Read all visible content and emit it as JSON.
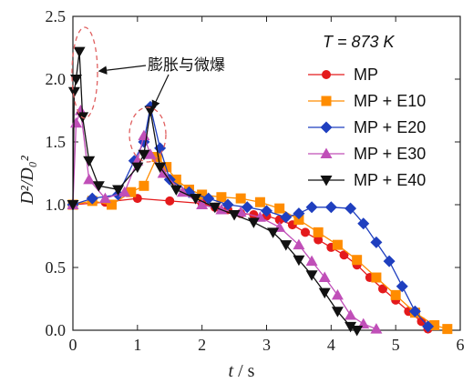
{
  "chart_data": {
    "type": "line",
    "xlabel_italic": "t",
    "xlabel_unit": " / s",
    "ylabel": "D²/D₀²",
    "xlim": [
      0,
      6
    ],
    "ylim": [
      0,
      2.5
    ],
    "xticks": [
      0,
      1,
      2,
      3,
      4,
      5,
      6
    ],
    "yticks": [
      0.0,
      0.5,
      1.0,
      1.5,
      2.0,
      2.5
    ],
    "ytick_labels": [
      "0.0",
      "0.5",
      "1.0",
      "1.5",
      "2.0",
      "2.5"
    ],
    "legend_title": "T = 873 K",
    "legend_placement": "top-right",
    "annotation": "膨胀与微爆",
    "series": [
      {
        "name": "MP",
        "color": "#e41a1c",
        "marker": "circle",
        "points": [
          [
            0,
            1.0
          ],
          [
            0.5,
            1.02
          ],
          [
            1.0,
            1.05
          ],
          [
            1.5,
            1.03
          ],
          [
            2.0,
            1.01
          ],
          [
            2.2,
            0.98
          ],
          [
            2.4,
            0.96
          ],
          [
            2.6,
            0.93
          ],
          [
            2.8,
            0.92
          ],
          [
            3.0,
            0.91
          ],
          [
            3.2,
            0.88
          ],
          [
            3.4,
            0.84
          ],
          [
            3.6,
            0.78
          ],
          [
            3.8,
            0.72
          ],
          [
            4.0,
            0.66
          ],
          [
            4.2,
            0.6
          ],
          [
            4.4,
            0.52
          ],
          [
            4.6,
            0.42
          ],
          [
            4.8,
            0.33
          ],
          [
            5.0,
            0.24
          ],
          [
            5.2,
            0.15
          ],
          [
            5.4,
            0.07
          ],
          [
            5.5,
            0.01
          ]
        ]
      },
      {
        "name": "MP + E10",
        "color": "#ff8c00",
        "marker": "square",
        "points": [
          [
            0,
            1.0
          ],
          [
            0.3,
            1.03
          ],
          [
            0.6,
            1.0
          ],
          [
            0.9,
            1.1
          ],
          [
            1.1,
            1.15
          ],
          [
            1.3,
            1.38
          ],
          [
            1.45,
            1.3
          ],
          [
            1.6,
            1.2
          ],
          [
            1.8,
            1.12
          ],
          [
            2.0,
            1.08
          ],
          [
            2.3,
            1.06
          ],
          [
            2.6,
            1.05
          ],
          [
            2.9,
            1.02
          ],
          [
            3.2,
            0.97
          ],
          [
            3.5,
            0.88
          ],
          [
            3.8,
            0.78
          ],
          [
            4.1,
            0.68
          ],
          [
            4.4,
            0.56
          ],
          [
            4.7,
            0.42
          ],
          [
            5.0,
            0.28
          ],
          [
            5.3,
            0.14
          ],
          [
            5.6,
            0.04
          ],
          [
            5.8,
            0.01
          ]
        ]
      },
      {
        "name": "MP + E20",
        "color": "#1f3fbf",
        "marker": "diamond",
        "points": [
          [
            0,
            1.0
          ],
          [
            0.3,
            1.05
          ],
          [
            0.7,
            1.08
          ],
          [
            0.95,
            1.35
          ],
          [
            1.1,
            1.5
          ],
          [
            1.2,
            1.78
          ],
          [
            1.35,
            1.45
          ],
          [
            1.5,
            1.2
          ],
          [
            1.8,
            1.1
          ],
          [
            2.1,
            1.05
          ],
          [
            2.4,
            1.0
          ],
          [
            2.7,
            0.98
          ],
          [
            3.0,
            0.95
          ],
          [
            3.3,
            0.9
          ],
          [
            3.5,
            0.93
          ],
          [
            3.7,
            0.98
          ],
          [
            4.0,
            0.98
          ],
          [
            4.3,
            0.97
          ],
          [
            4.5,
            0.85
          ],
          [
            4.7,
            0.7
          ],
          [
            4.9,
            0.55
          ],
          [
            5.1,
            0.35
          ],
          [
            5.3,
            0.15
          ],
          [
            5.5,
            0.03
          ]
        ]
      },
      {
        "name": "MP + E30",
        "color": "#c04fb8",
        "marker": "triangle-up",
        "points": [
          [
            0,
            1.0
          ],
          [
            0.05,
            1.65
          ],
          [
            0.12,
            1.75
          ],
          [
            0.25,
            1.2
          ],
          [
            0.5,
            1.05
          ],
          [
            0.8,
            1.1
          ],
          [
            1.0,
            1.35
          ],
          [
            1.1,
            1.55
          ],
          [
            1.2,
            1.4
          ],
          [
            1.4,
            1.25
          ],
          [
            1.7,
            1.1
          ],
          [
            2.0,
            1.0
          ],
          [
            2.3,
            0.96
          ],
          [
            2.6,
            0.94
          ],
          [
            2.9,
            0.9
          ],
          [
            3.2,
            0.82
          ],
          [
            3.5,
            0.68
          ],
          [
            3.7,
            0.55
          ],
          [
            3.9,
            0.42
          ],
          [
            4.1,
            0.28
          ],
          [
            4.3,
            0.12
          ],
          [
            4.5,
            0.05
          ],
          [
            4.7,
            0.01
          ]
        ]
      },
      {
        "name": "MP + E40",
        "color": "#111111",
        "marker": "triangle-down",
        "points": [
          [
            0,
            1.0
          ],
          [
            0.02,
            1.9
          ],
          [
            0.05,
            2.0
          ],
          [
            0.1,
            2.22
          ],
          [
            0.15,
            1.7
          ],
          [
            0.25,
            1.35
          ],
          [
            0.4,
            1.15
          ],
          [
            0.7,
            1.12
          ],
          [
            1.0,
            1.3
          ],
          [
            1.1,
            1.4
          ],
          [
            1.2,
            1.75
          ],
          [
            1.35,
            1.3
          ],
          [
            1.6,
            1.12
          ],
          [
            1.9,
            1.05
          ],
          [
            2.2,
            0.98
          ],
          [
            2.5,
            0.92
          ],
          [
            2.8,
            0.86
          ],
          [
            3.1,
            0.78
          ],
          [
            3.3,
            0.68
          ],
          [
            3.5,
            0.56
          ],
          [
            3.7,
            0.44
          ],
          [
            3.9,
            0.3
          ],
          [
            4.1,
            0.15
          ],
          [
            4.3,
            0.03
          ],
          [
            4.4,
            0.0
          ]
        ]
      }
    ]
  }
}
